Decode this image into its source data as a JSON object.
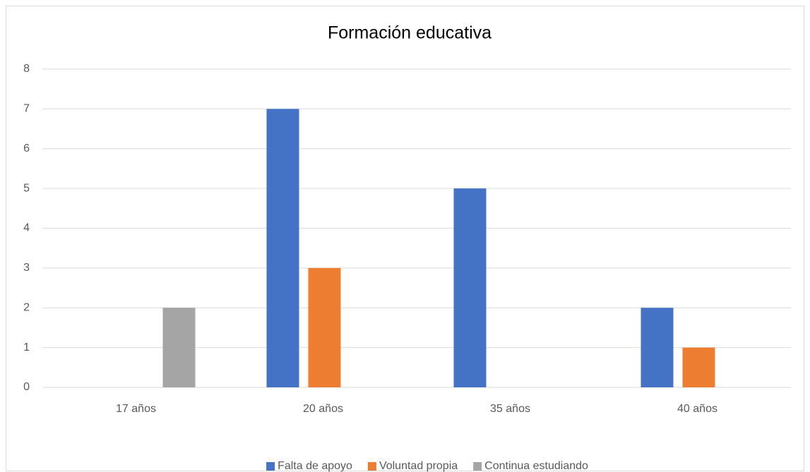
{
  "chart_data": {
    "type": "bar",
    "title": "Formación educativa",
    "categories": [
      "17 años",
      "20 años",
      "35 años",
      "40 años"
    ],
    "series": [
      {
        "name": "Falta de apoyo",
        "color": "#4472c4",
        "values": [
          0,
          7,
          5,
          2
        ]
      },
      {
        "name": "Voluntad propia",
        "color": "#ed7d31",
        "values": [
          0,
          3,
          0,
          1
        ]
      },
      {
        "name": "Continua estudiando",
        "color": "#a5a5a5",
        "values": [
          2,
          0,
          0,
          0
        ]
      }
    ],
    "ylim": [
      0,
      8
    ],
    "yticks": [
      0,
      1,
      2,
      3,
      4,
      5,
      6,
      7,
      8
    ],
    "grid": true,
    "legend": "bottom"
  }
}
